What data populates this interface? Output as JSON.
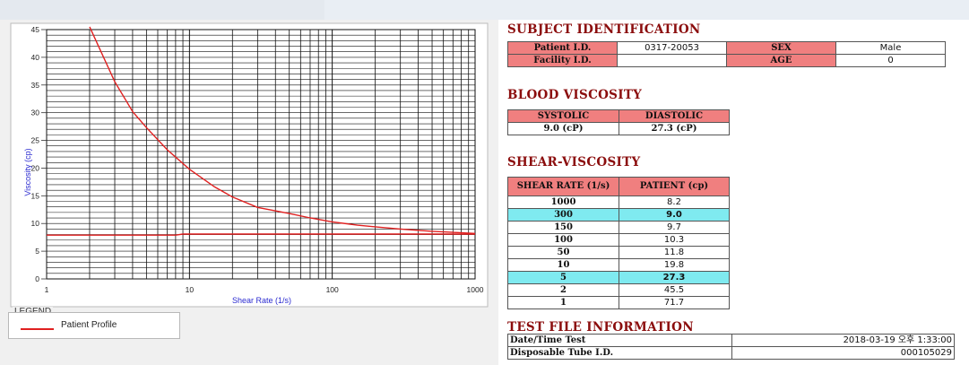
{
  "chart_data": {
    "type": "line",
    "xscale": "log",
    "xlabel": "Shear Rate (1/s)",
    "ylabel": "Viscosity (cp)",
    "xlim": [
      1,
      1000
    ],
    "ylim": [
      0,
      45
    ],
    "xticks": [
      "1",
      "10",
      "100",
      "1000"
    ],
    "yticks": [
      "0",
      "5",
      "10",
      "15",
      "20",
      "25",
      "30",
      "35",
      "40",
      "45"
    ],
    "grid": true,
    "series": [
      {
        "name": "Patient Profile",
        "color": "#e02020",
        "x": [
          2,
          3,
          4,
          5,
          7,
          10,
          15,
          20,
          30,
          50,
          70,
          100,
          150,
          200,
          300,
          500,
          700,
          1000
        ],
        "y": [
          45.5,
          35.6,
          30.2,
          27.3,
          23.3,
          19.8,
          16.6,
          14.8,
          12.9,
          11.8,
          11.0,
          10.3,
          9.7,
          9.4,
          9.0,
          8.6,
          8.4,
          8.2
        ]
      },
      {
        "name": "",
        "color": "#e02020",
        "x": [
          1,
          8,
          9,
          1000
        ],
        "y": [
          7.9,
          7.9,
          8.1,
          8.1
        ]
      }
    ]
  },
  "legend": {
    "title": "LEGEND",
    "items": [
      "Patient Profile"
    ]
  },
  "subject": {
    "heading": "SUBJECT IDENTIFICATION",
    "patient_id_label": "Patient I.D.",
    "patient_id": "0317-20053",
    "sex_label": "SEX",
    "sex": "Male",
    "facility_label": "Facility I.D.",
    "facility": "",
    "age_label": "AGE",
    "age": "0"
  },
  "blood": {
    "heading": "BLOOD VISCOSITY",
    "systolic_label": "SYSTOLIC",
    "systolic": "9.0 (cP)",
    "diastolic_label": "DIASTOLIC",
    "diastolic": "27.3 (cP)"
  },
  "shear": {
    "heading": "SHEAR-VISCOSITY",
    "col1": "SHEAR RATE (1/s)",
    "col2": "PATIENT (cp)",
    "rows": [
      {
        "rate": "1000",
        "val": "8.2",
        "hl": false
      },
      {
        "rate": "300",
        "val": "9.0",
        "hl": true
      },
      {
        "rate": "150",
        "val": "9.7",
        "hl": false
      },
      {
        "rate": "100",
        "val": "10.3",
        "hl": false
      },
      {
        "rate": "50",
        "val": "11.8",
        "hl": false
      },
      {
        "rate": "10",
        "val": "19.8",
        "hl": false
      },
      {
        "rate": "5",
        "val": "27.3",
        "hl": true
      },
      {
        "rate": "2",
        "val": "45.5",
        "hl": false
      },
      {
        "rate": "1",
        "val": "71.7",
        "hl": false
      }
    ]
  },
  "testfile": {
    "heading": "TEST FILE INFORMATION",
    "datetime_label": "Date/Time Test",
    "datetime": "2018-03-19  오후 1:33:00",
    "tube_label": "Disposable Tube I.D.",
    "tube": "000105029"
  }
}
